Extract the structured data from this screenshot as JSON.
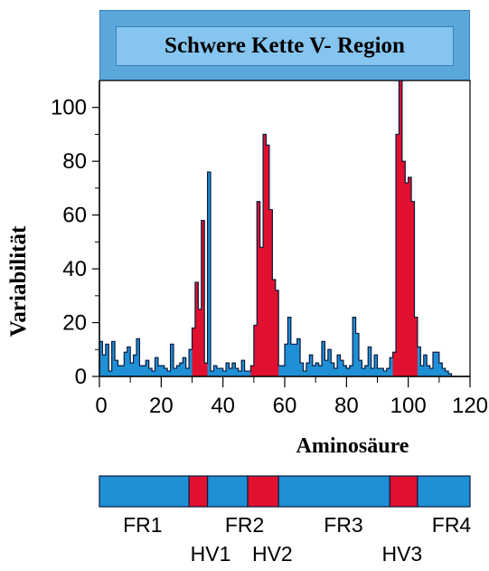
{
  "chart_data": {
    "type": "bar",
    "title": "Schwere Kette V- Region",
    "xlabel": "Aminosäure",
    "ylabel": "Variabilität",
    "xlim": [
      0,
      120
    ],
    "ylim": [
      0,
      110
    ],
    "xticks": [
      "0",
      "20",
      "40",
      "60",
      "80",
      "100",
      "120"
    ],
    "yticks": [
      "0",
      "20",
      "40",
      "60",
      "80",
      "100"
    ],
    "colors": {
      "framework": "#1f8fd6",
      "hypervariable": "#e0102e",
      "outline": "#0a1a3a"
    },
    "variability": [
      13,
      8,
      12,
      2,
      13,
      6,
      4,
      4,
      9,
      11,
      5,
      8,
      14,
      4,
      4,
      6,
      3,
      2,
      7,
      4,
      4,
      3,
      2,
      12,
      3,
      4,
      5,
      7,
      3,
      10,
      18,
      35,
      25,
      58,
      5,
      76,
      2,
      4,
      3,
      3,
      2,
      5,
      3,
      5,
      3,
      2,
      6,
      2,
      2,
      4,
      19,
      65,
      48,
      90,
      86,
      62,
      36,
      32,
      4,
      4,
      12,
      22,
      12,
      12,
      14,
      5,
      2,
      5,
      8,
      4,
      5,
      4,
      13,
      6,
      10,
      5,
      3,
      8,
      6,
      4,
      3,
      4,
      22,
      16,
      6,
      3,
      4,
      11,
      3,
      8,
      3,
      3,
      2,
      3,
      7,
      9,
      90,
      110,
      80,
      72,
      74,
      65,
      22,
      11,
      4,
      8,
      4,
      3,
      9,
      9,
      5,
      3,
      2,
      1,
      0,
      0,
      0,
      0,
      0,
      0
    ],
    "hypervariable_ranges": [
      [
        30,
        35
      ],
      [
        49,
        58
      ],
      [
        95,
        103
      ]
    ],
    "region_bar": {
      "segments": [
        {
          "name": "FR1",
          "from": 0,
          "to": 29,
          "kind": "framework"
        },
        {
          "name": "HV1",
          "from": 29,
          "to": 35,
          "kind": "hypervariable"
        },
        {
          "name": "FR2",
          "from": 35,
          "to": 48,
          "kind": "framework"
        },
        {
          "name": "HV2",
          "from": 48,
          "to": 58,
          "kind": "hypervariable"
        },
        {
          "name": "FR3",
          "from": 58,
          "to": 94,
          "kind": "framework"
        },
        {
          "name": "HV3",
          "from": 94,
          "to": 103,
          "kind": "hypervariable"
        },
        {
          "name": "FR4",
          "from": 103,
          "to": 120,
          "kind": "framework"
        }
      ],
      "labels_top": [
        {
          "text": "FR1",
          "x": 14
        },
        {
          "text": "FR2",
          "x": 47
        },
        {
          "text": "FR3",
          "x": 79
        },
        {
          "text": "FR4",
          "x": 114
        }
      ],
      "labels_bottom": [
        {
          "text": "HV1",
          "x": 36
        },
        {
          "text": "HV2",
          "x": 56
        },
        {
          "text": "HV3",
          "x": 98
        }
      ]
    }
  }
}
